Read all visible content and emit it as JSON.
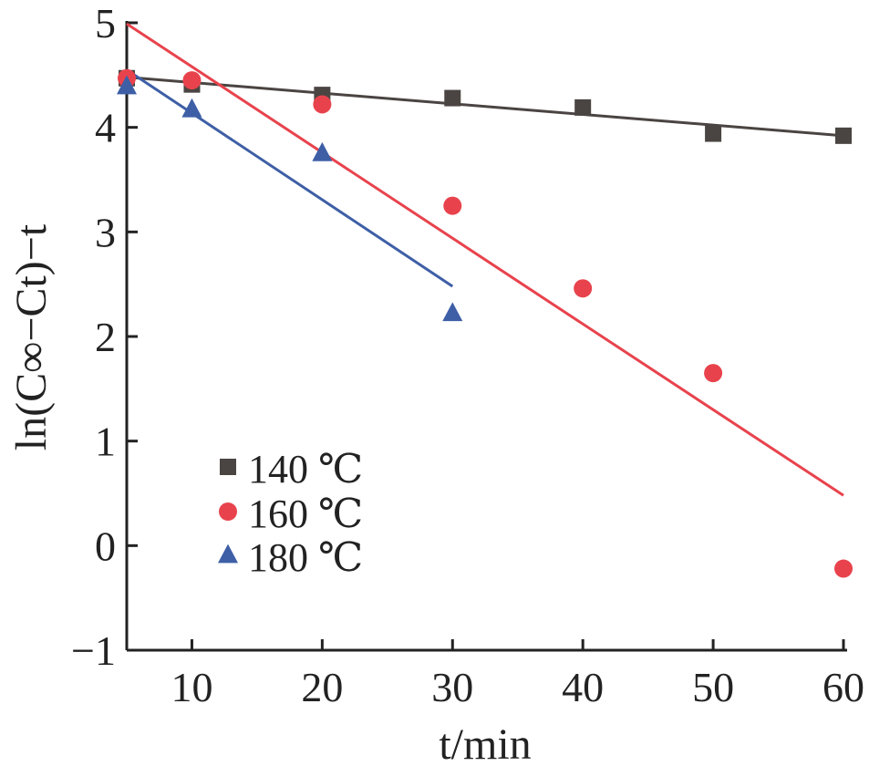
{
  "chart_data": {
    "type": "scatter",
    "xlabel": "t/min",
    "ylabel": "ln(C∞−Ct)−t",
    "xlim": [
      5,
      60
    ],
    "ylim": [
      -1,
      5
    ],
    "x_ticks": [
      10,
      20,
      30,
      40,
      50,
      60
    ],
    "y_ticks": [
      -1,
      0,
      1,
      2,
      3,
      4,
      5
    ],
    "y_tick_labels": [
      "−1",
      "0",
      "1",
      "2",
      "3",
      "4",
      "5"
    ],
    "grid": false,
    "legend_position": "bottom-left",
    "series": [
      {
        "name": "140 ℃",
        "marker": "square",
        "color": "#4a4542",
        "x": [
          5,
          10,
          20,
          30,
          40,
          50,
          60
        ],
        "y": [
          4.47,
          4.41,
          4.31,
          4.28,
          4.19,
          3.94,
          3.92
        ],
        "fit": {
          "x": [
            5,
            60
          ],
          "y": [
            4.48,
            3.92
          ]
        }
      },
      {
        "name": "160 ℃",
        "marker": "circle",
        "color": "#e8434d",
        "x": [
          5,
          10,
          20,
          30,
          40,
          50,
          60
        ],
        "y": [
          4.47,
          4.45,
          4.22,
          3.25,
          2.46,
          1.65,
          -0.22
        ],
        "fit": {
          "x": [
            5,
            60
          ],
          "y": [
            4.99,
            0.48
          ]
        }
      },
      {
        "name": "180 ℃",
        "marker": "triangle",
        "color": "#3e5fa6",
        "x": [
          5,
          10,
          20,
          30
        ],
        "y": [
          4.39,
          4.17,
          3.75,
          2.22
        ],
        "fit": {
          "x": [
            5,
            30
          ],
          "y": [
            4.55,
            2.48
          ]
        }
      }
    ]
  }
}
